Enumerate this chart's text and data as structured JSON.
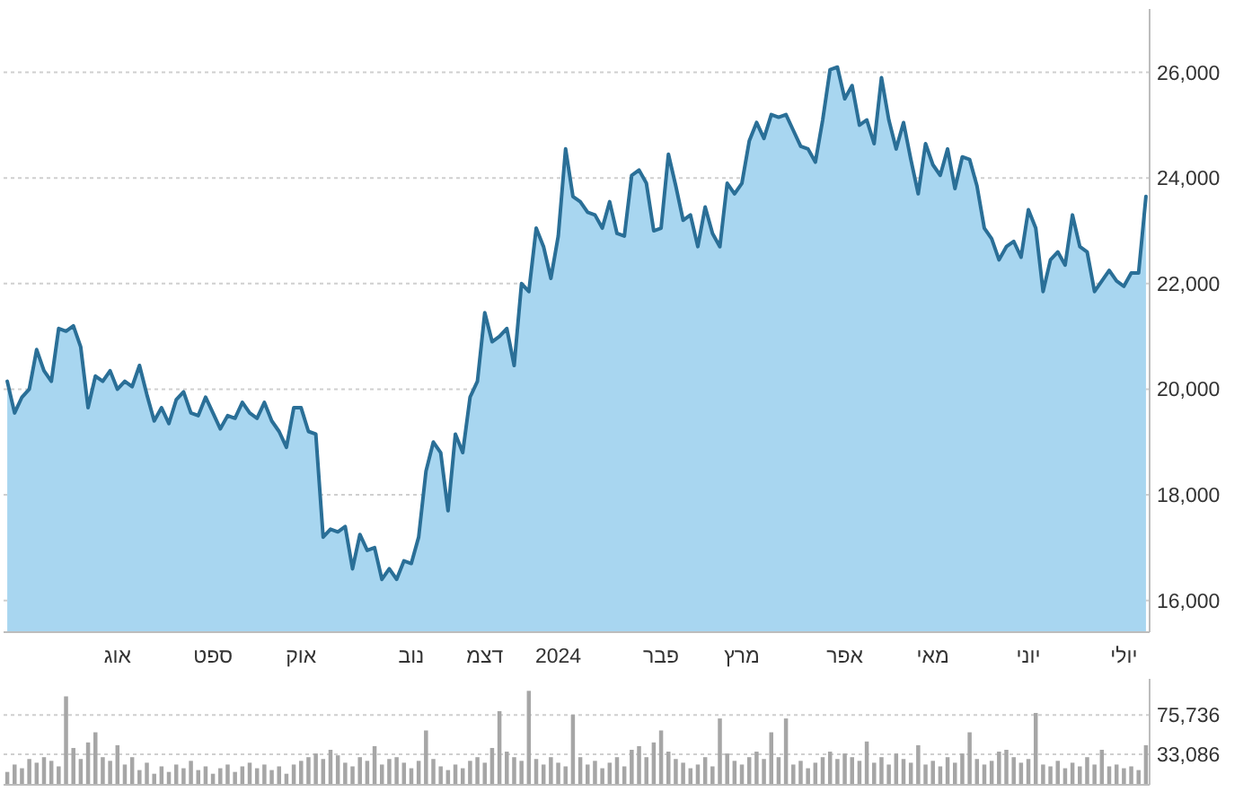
{
  "chart_data": [
    {
      "type": "area",
      "color": "#2a6f97",
      "grid": "y",
      "ylim": [
        15400,
        27200
      ],
      "yticks": [
        {
          "value": 16000,
          "label": "16,000"
        },
        {
          "value": 18000,
          "label": "18,000"
        },
        {
          "value": 20000,
          "label": "20,000"
        },
        {
          "value": 22000,
          "label": "22,000"
        },
        {
          "value": 24000,
          "label": "24,000"
        },
        {
          "value": 26000,
          "label": "26,000"
        }
      ],
      "categories": [
        null,
        null,
        null,
        null,
        null,
        null,
        null,
        null,
        null,
        null,
        null,
        null,
        null,
        null,
        null,
        "אוג",
        null,
        null,
        null,
        null,
        null,
        null,
        null,
        null,
        null,
        null,
        null,
        null,
        "ספט",
        null,
        null,
        null,
        null,
        null,
        null,
        null,
        null,
        null,
        null,
        null,
        "אוק",
        null,
        null,
        null,
        null,
        null,
        null,
        null,
        null,
        null,
        null,
        null,
        null,
        null,
        null,
        "נוב",
        null,
        null,
        null,
        null,
        null,
        null,
        null,
        null,
        null,
        "דצמ",
        null,
        null,
        null,
        null,
        null,
        null,
        null,
        null,
        null,
        "2024",
        null,
        null,
        null,
        null,
        null,
        null,
        null,
        null,
        null,
        null,
        null,
        null,
        null,
        "פבר",
        null,
        null,
        null,
        null,
        null,
        null,
        null,
        null,
        null,
        null,
        "מרץ",
        null,
        null,
        null,
        null,
        null,
        null,
        null,
        null,
        null,
        null,
        null,
        null,
        null,
        "אפר",
        null,
        null,
        null,
        null,
        null,
        null,
        null,
        null,
        null,
        null,
        null,
        "מאי",
        null,
        null,
        null,
        null,
        null,
        null,
        null,
        null,
        null,
        null,
        null,
        null,
        "יוני",
        null,
        null,
        null,
        null,
        null,
        null,
        null,
        null,
        null,
        null,
        null,
        null,
        "יולי",
        null,
        null,
        null
      ],
      "values": [
        20150,
        19550,
        19850,
        20000,
        20750,
        20350,
        20150,
        21150,
        21100,
        21200,
        20800,
        19650,
        20250,
        20150,
        20350,
        20000,
        20150,
        20050,
        20450,
        19900,
        19400,
        19650,
        19350,
        19800,
        19950,
        19550,
        19500,
        19850,
        19550,
        19250,
        19500,
        19450,
        19750,
        19550,
        19450,
        19750,
        19400,
        19200,
        18900,
        19650,
        19650,
        19200,
        19150,
        17200,
        17350,
        17300,
        17400,
        16600,
        17250,
        16950,
        17000,
        16400,
        16600,
        16400,
        16750,
        16700,
        17200,
        18450,
        19000,
        18800,
        17700,
        19150,
        18800,
        19850,
        20150,
        21450,
        20900,
        21000,
        21150,
        20450,
        22000,
        21850,
        23050,
        22700,
        22100,
        22900,
        24550,
        23650,
        23550,
        23350,
        23300,
        23050,
        23550,
        22950,
        22900,
        24050,
        24150,
        23900,
        23000,
        23050,
        24450,
        23850,
        23200,
        23300,
        22700,
        23450,
        22950,
        22700,
        23900,
        23700,
        23900,
        24700,
        25050,
        24750,
        25200,
        25150,
        25200,
        24900,
        24600,
        24550,
        24300,
        25100,
        26050,
        26100,
        25500,
        25750,
        25000,
        25100,
        24650,
        25900,
        25100,
        24550,
        25050,
        24350,
        23700,
        24650,
        24250,
        24050,
        24550,
        23800,
        24400,
        24350,
        23850,
        23050,
        22850,
        22450,
        22700,
        22800,
        22500,
        23400,
        23050,
        21850,
        22450,
        22600,
        22350,
        23300,
        22700,
        22600,
        21850,
        22050,
        22250,
        22050,
        21950,
        22200,
        22200,
        23650
      ]
    },
    {
      "type": "bar",
      "color": "#a6a6a6",
      "grid": "y",
      "tick_labels": "y",
      "ylim": [
        0,
        115000
      ],
      "yticks": [
        {
          "value": 33086,
          "label": "33,086"
        },
        {
          "value": 75736,
          "label": "75,736"
        }
      ],
      "categories": [
        null,
        null,
        null,
        null,
        null,
        null,
        null,
        null,
        null,
        null,
        null,
        null,
        null,
        null,
        null,
        null,
        null,
        null,
        null,
        null,
        null,
        null,
        null,
        null,
        null,
        null,
        null,
        null,
        null,
        null,
        null,
        null,
        null,
        null,
        null,
        null,
        null,
        null,
        null,
        null,
        null,
        null,
        null,
        null,
        null,
        null,
        null,
        null,
        null,
        null,
        null,
        null,
        null,
        null,
        null,
        null,
        null,
        null,
        null,
        null,
        null,
        null,
        null,
        null,
        null,
        null,
        null,
        null,
        null,
        null,
        null,
        null,
        null,
        null,
        null,
        null,
        null,
        null,
        null,
        null,
        null,
        null,
        null,
        null,
        null,
        null,
        null,
        null,
        null,
        null,
        null,
        null,
        null,
        null,
        null,
        null,
        null,
        null,
        null,
        null,
        null,
        null,
        null,
        null,
        null,
        null,
        null,
        null,
        null,
        null,
        null,
        null,
        null,
        null,
        null,
        null,
        null,
        null,
        null,
        null,
        null,
        null,
        null,
        null,
        null,
        null,
        null,
        null,
        null,
        null,
        null,
        null,
        null,
        null,
        null,
        null,
        null,
        null,
        null,
        null,
        null,
        null,
        null,
        null,
        null,
        null,
        null,
        null,
        null,
        null,
        null,
        null,
        null,
        null,
        null,
        null
      ],
      "values": [
        14000,
        22000,
        18000,
        28000,
        24000,
        30000,
        26000,
        20000,
        96000,
        40000,
        28000,
        46000,
        57000,
        30000,
        26000,
        43000,
        22000,
        30000,
        16000,
        24000,
        12000,
        20000,
        14000,
        22000,
        18000,
        26000,
        16000,
        20000,
        12000,
        18000,
        22000,
        14000,
        20000,
        24000,
        18000,
        22000,
        16000,
        20000,
        12000,
        22000,
        26000,
        30000,
        34000,
        28000,
        38000,
        32000,
        24000,
        20000,
        30000,
        26000,
        42000,
        22000,
        28000,
        30000,
        24000,
        18000,
        26000,
        59000,
        28000,
        20000,
        16000,
        22000,
        18000,
        26000,
        30000,
        24000,
        40000,
        80000,
        36000,
        30000,
        26000,
        102000,
        28000,
        22000,
        30000,
        24000,
        20000,
        76000,
        30000,
        22000,
        26000,
        18000,
        24000,
        30000,
        20000,
        38000,
        42000,
        30000,
        46000,
        59000,
        36000,
        28000,
        24000,
        18000,
        22000,
        30000,
        20000,
        72000,
        34000,
        26000,
        22000,
        30000,
        36000,
        28000,
        57000,
        30000,
        72000,
        22000,
        26000,
        18000,
        24000,
        30000,
        36000,
        28000,
        34000,
        30000,
        26000,
        47000,
        24000,
        30000,
        22000,
        34000,
        28000,
        24000,
        43000,
        22000,
        26000,
        20000,
        30000,
        24000,
        34000,
        57000,
        28000,
        22000,
        26000,
        36000,
        38000,
        30000,
        24000,
        28000,
        78000,
        22000,
        20000,
        26000,
        18000,
        24000,
        20000,
        30000,
        22000,
        38000,
        20000,
        22000,
        18000,
        20000,
        16000,
        43000
      ]
    }
  ]
}
